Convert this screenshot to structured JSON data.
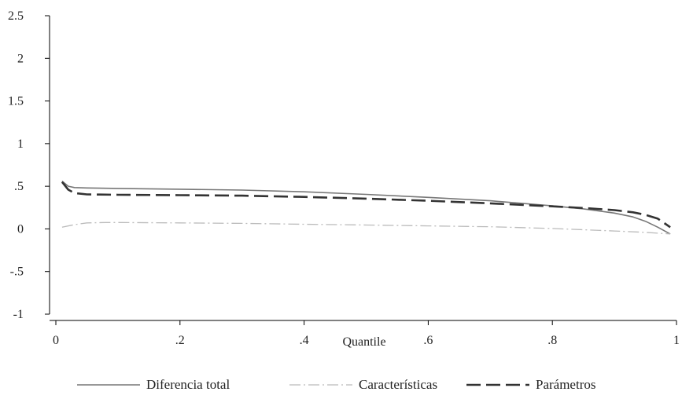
{
  "chart_data": {
    "type": "line",
    "title": "",
    "xlabel": "Quantile",
    "ylabel": "",
    "xlim": [
      0,
      1
    ],
    "ylim": [
      -1,
      2.5
    ],
    "x_ticks": [
      {
        "value": 0,
        "label": "0"
      },
      {
        "value": 0.2,
        "label": ".2"
      },
      {
        "value": 0.4,
        "label": ".4"
      },
      {
        "value": 0.6,
        "label": ".6"
      },
      {
        "value": 0.8,
        "label": ".8"
      },
      {
        "value": 1,
        "label": "1"
      }
    ],
    "y_ticks": [
      {
        "value": 2.5,
        "label": "2.5"
      },
      {
        "value": 2,
        "label": "2"
      },
      {
        "value": 1.5,
        "label": "1.5"
      },
      {
        "value": 1,
        "label": "1"
      },
      {
        "value": 0.5,
        "label": ".5"
      },
      {
        "value": 0,
        "label": "0"
      },
      {
        "value": -0.5,
        "label": "-.5"
      },
      {
        "value": -1,
        "label": "-1"
      }
    ],
    "grid": false,
    "legend_position": "bottom",
    "series": [
      {
        "name": "Diferencia total",
        "color": "#777777",
        "dash": "solid",
        "x": [
          0.01,
          0.02,
          0.03,
          0.05,
          0.1,
          0.2,
          0.3,
          0.4,
          0.5,
          0.6,
          0.7,
          0.8,
          0.85,
          0.9,
          0.93,
          0.95,
          0.97,
          0.99
        ],
        "y": [
          0.56,
          0.5,
          0.485,
          0.48,
          0.475,
          0.465,
          0.455,
          0.435,
          0.405,
          0.37,
          0.33,
          0.27,
          0.235,
          0.185,
          0.14,
          0.09,
          0.02,
          -0.06
        ]
      },
      {
        "name": "Características",
        "color": "#bbbbbb",
        "dash": "dashdot",
        "x": [
          0.01,
          0.03,
          0.05,
          0.08,
          0.1,
          0.2,
          0.3,
          0.4,
          0.5,
          0.6,
          0.7,
          0.8,
          0.9,
          0.95,
          0.99
        ],
        "y": [
          0.02,
          0.05,
          0.07,
          0.075,
          0.075,
          0.07,
          0.065,
          0.055,
          0.045,
          0.035,
          0.025,
          0.005,
          -0.025,
          -0.04,
          -0.06
        ]
      },
      {
        "name": "Parámetros",
        "color": "#333333",
        "dash": "longdash",
        "x": [
          0.01,
          0.02,
          0.03,
          0.05,
          0.1,
          0.2,
          0.3,
          0.4,
          0.5,
          0.6,
          0.7,
          0.8,
          0.85,
          0.9,
          0.93,
          0.95,
          0.97,
          0.99
        ],
        "y": [
          0.55,
          0.46,
          0.42,
          0.405,
          0.4,
          0.395,
          0.39,
          0.375,
          0.355,
          0.33,
          0.3,
          0.265,
          0.245,
          0.22,
          0.195,
          0.165,
          0.12,
          0.02
        ]
      }
    ]
  }
}
